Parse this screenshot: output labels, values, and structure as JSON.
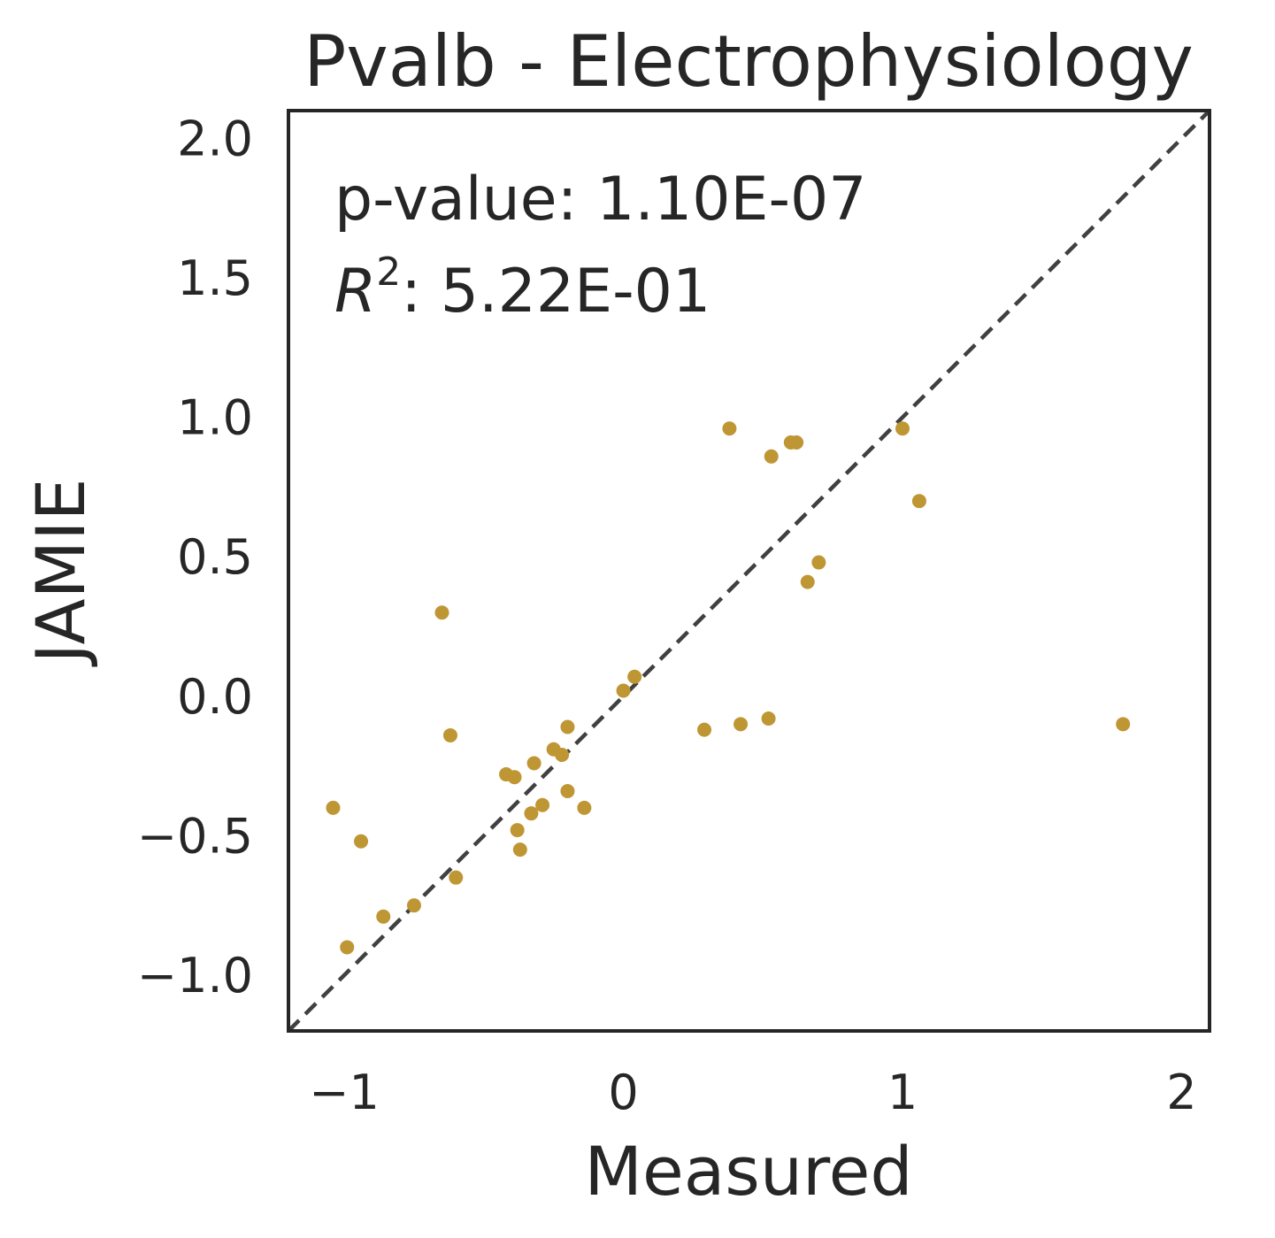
{
  "chart_data": {
    "type": "scatter",
    "title": "Pvalb - Electrophysiology",
    "xlabel": "Measured",
    "ylabel": "JAMIE",
    "xlim": [
      -1.2,
      2.1
    ],
    "ylim": [
      -1.2,
      2.1
    ],
    "x_ticks": [
      -1,
      0,
      1,
      2
    ],
    "x_tick_labels": [
      "−1",
      "0",
      "1",
      "2"
    ],
    "y_ticks": [
      -1.0,
      -0.5,
      0.0,
      0.5,
      1.0,
      1.5,
      2.0
    ],
    "y_tick_labels": [
      "−1.0",
      "−0.5",
      "0.0",
      "0.5",
      "1.0",
      "1.5",
      "2.0"
    ],
    "grid": false,
    "identity_line": true,
    "point_color": "#bf9634",
    "line_color": "#404040",
    "annotations": {
      "pvalue_text": "p-value: 1.10E-07",
      "r2_label": "R",
      "r2_exp": "2",
      "r2_value": ": 5.22E-01"
    },
    "points": [
      {
        "x": -1.04,
        "y": -0.4
      },
      {
        "x": -0.94,
        "y": -0.52
      },
      {
        "x": -0.99,
        "y": -0.9
      },
      {
        "x": -0.86,
        "y": -0.79
      },
      {
        "x": -0.75,
        "y": -0.75
      },
      {
        "x": -0.65,
        "y": 0.3
      },
      {
        "x": -0.62,
        "y": -0.14
      },
      {
        "x": -0.6,
        "y": -0.65
      },
      {
        "x": -0.42,
        "y": -0.28
      },
      {
        "x": -0.39,
        "y": -0.29
      },
      {
        "x": -0.38,
        "y": -0.48
      },
      {
        "x": -0.37,
        "y": -0.55
      },
      {
        "x": -0.32,
        "y": -0.24
      },
      {
        "x": -0.33,
        "y": -0.42
      },
      {
        "x": -0.29,
        "y": -0.39
      },
      {
        "x": -0.25,
        "y": -0.19
      },
      {
        "x": -0.22,
        "y": -0.21
      },
      {
        "x": -0.2,
        "y": -0.11
      },
      {
        "x": -0.2,
        "y": -0.34
      },
      {
        "x": -0.14,
        "y": -0.4
      },
      {
        "x": 0.0,
        "y": 0.02
      },
      {
        "x": 0.04,
        "y": 0.07
      },
      {
        "x": 0.29,
        "y": -0.12
      },
      {
        "x": 0.38,
        "y": 0.96
      },
      {
        "x": 0.42,
        "y": -0.1
      },
      {
        "x": 0.52,
        "y": -0.08
      },
      {
        "x": 0.53,
        "y": 0.86
      },
      {
        "x": 0.6,
        "y": 0.91
      },
      {
        "x": 0.62,
        "y": 0.91
      },
      {
        "x": 0.66,
        "y": 0.41
      },
      {
        "x": 0.7,
        "y": 0.48
      },
      {
        "x": 1.0,
        "y": 0.96
      },
      {
        "x": 1.06,
        "y": 0.7
      },
      {
        "x": 1.79,
        "y": -0.1
      }
    ]
  }
}
